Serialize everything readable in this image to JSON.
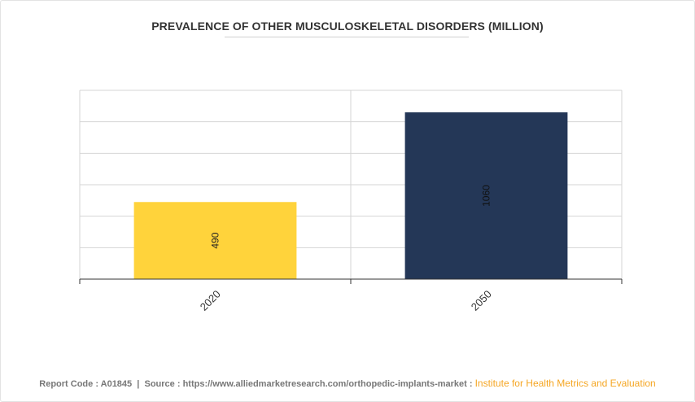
{
  "chart_data": {
    "type": "bar",
    "title": "PREVALENCE OF OTHER MUSCULOSKELETAL DISORDERS (MILLION)",
    "categories": [
      "2020",
      "2050"
    ],
    "values": [
      490,
      1060
    ],
    "data_labels": [
      "490",
      "1060"
    ],
    "ylim": [
      0,
      1200
    ],
    "y_gridlines": [
      0,
      200,
      400,
      600,
      800,
      1000,
      1200
    ],
    "grid": true,
    "legend": "none",
    "colors": [
      "#FFD33B",
      "#243757"
    ]
  },
  "footer": {
    "report_code_label": "Report Code : A01845",
    "separator": "|",
    "source_label": "Source : https://www.alliedmarketresearch.com/orthopedic-implants-market :",
    "source_org": "Institute for Health Metrics and Evaluation"
  }
}
